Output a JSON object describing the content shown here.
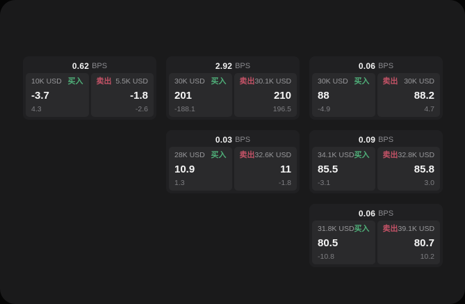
{
  "labels": {
    "bps": "BPS",
    "buy": "买入",
    "sell": "卖出"
  },
  "colors": {
    "page_bg": "#1a1a1b",
    "card_bg": "#202022",
    "tile_bg": "#2a2a2c",
    "buy_green": "#4fae78",
    "sell_red": "#c25266"
  },
  "cards": [
    {
      "bps": "0.62",
      "buy": {
        "amount": "10K USD",
        "value": "-3.7",
        "sub": "4.3"
      },
      "sell": {
        "amount": "5.5K USD",
        "value": "-1.8",
        "sub": "-2.6"
      }
    },
    {
      "bps": "2.92",
      "buy": {
        "amount": "30K USD",
        "value": "201",
        "sub": "-188.1"
      },
      "sell": {
        "amount": "30.1K USD",
        "value": "210",
        "sub": "196.5"
      }
    },
    {
      "bps": "0.06",
      "buy": {
        "amount": "30K USD",
        "value": "88",
        "sub": "-4.9"
      },
      "sell": {
        "amount": "30K USD",
        "value": "88.2",
        "sub": "4.7"
      }
    },
    {
      "bps": "0.03",
      "buy": {
        "amount": "28K USD",
        "value": "10.9",
        "sub": "1.3"
      },
      "sell": {
        "amount": "32.6K USD",
        "value": "11",
        "sub": "-1.8"
      }
    },
    {
      "bps": "0.09",
      "buy": {
        "amount": "34.1K USD",
        "value": "85.5",
        "sub": "-3.1"
      },
      "sell": {
        "amount": "32.8K USD",
        "value": "85.8",
        "sub": "3.0"
      }
    },
    {
      "bps": "0.06",
      "buy": {
        "amount": "31.8K USD",
        "value": "80.5",
        "sub": "-10.8"
      },
      "sell": {
        "amount": "39.1K USD",
        "value": "80.7",
        "sub": "10.2"
      }
    }
  ]
}
